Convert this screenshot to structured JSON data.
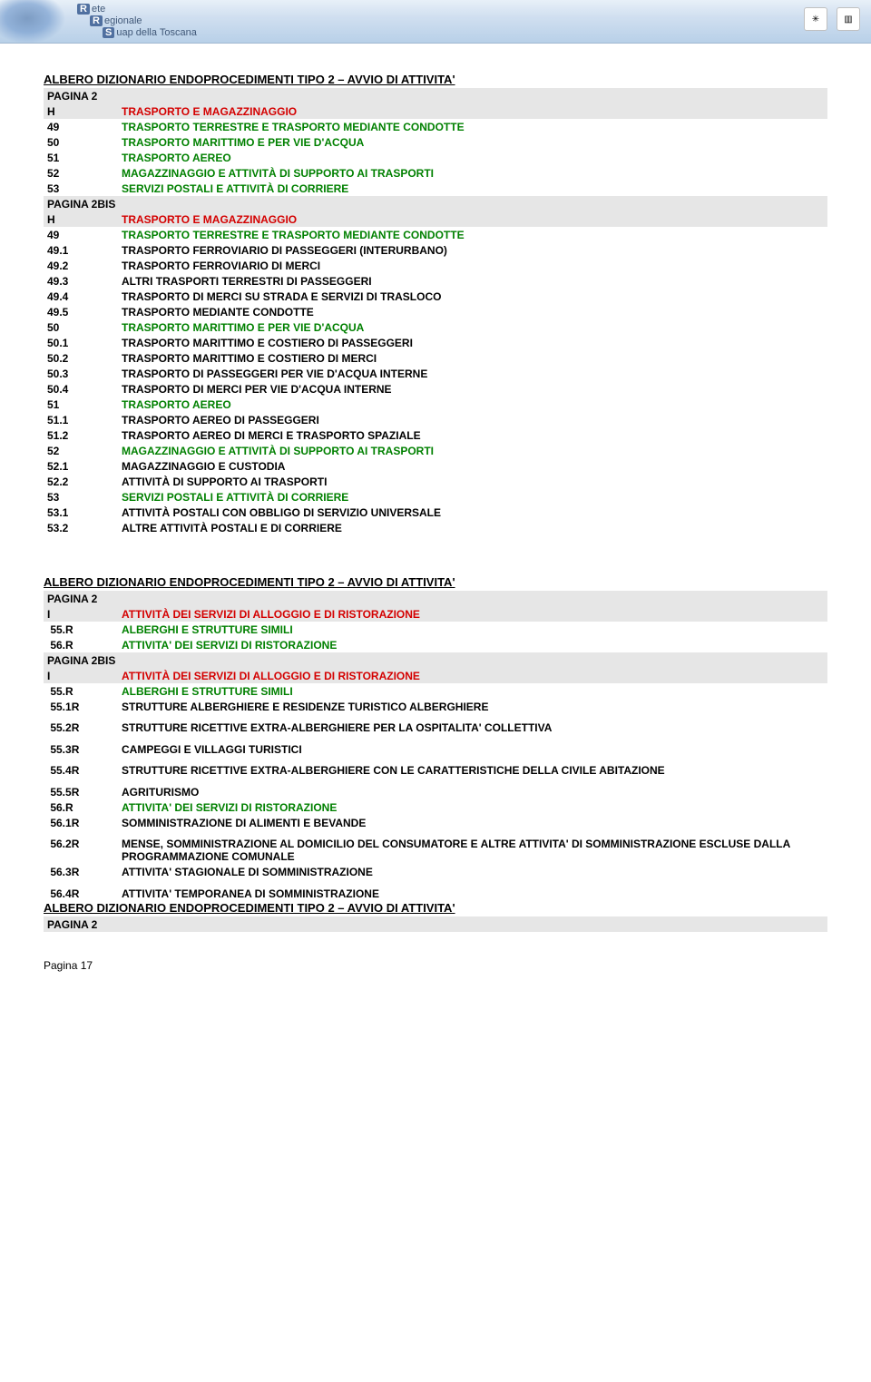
{
  "header": {
    "logo_line1_r": "R",
    "logo_line1": "ete",
    "logo_line2_r": "R",
    "logo_line2": "egionale",
    "logo_line3_r": "S",
    "logo_line3": "uap della Toscana",
    "badge1": "✳",
    "badge2": "▥"
  },
  "block1": {
    "title": "ALBERO DIZIONARIO ENDOPROCEDIMENTI TIPO 2 – AVVIO DI ATTIVITA'",
    "rows": [
      {
        "grey": true,
        "code": "PAGINA 2",
        "text": "",
        "color": "black"
      },
      {
        "grey": true,
        "code": "H",
        "text": "TRASPORTO E MAGAZZINAGGIO",
        "color": "red"
      },
      {
        "grey": false,
        "code": "49",
        "text": "TRASPORTO TERRESTRE E TRASPORTO MEDIANTE CONDOTTE",
        "color": "green"
      },
      {
        "grey": false,
        "code": "50",
        "text": "TRASPORTO MARITTIMO E PER VIE D'ACQUA",
        "color": "green"
      },
      {
        "grey": false,
        "code": "51",
        "text": "TRASPORTO AEREO",
        "color": "green"
      },
      {
        "grey": false,
        "code": "52",
        "text": "MAGAZZINAGGIO E ATTIVITÀ DI SUPPORTO AI TRASPORTI",
        "color": "green"
      },
      {
        "grey": false,
        "code": "53",
        "text": "SERVIZI POSTALI E ATTIVITÀ DI CORRIERE",
        "color": "green"
      },
      {
        "grey": true,
        "code": "PAGINA 2BIS",
        "text": "",
        "color": "black"
      },
      {
        "grey": true,
        "code": "H",
        "text": "TRASPORTO E MAGAZZINAGGIO",
        "color": "red"
      },
      {
        "grey": false,
        "code": "49",
        "text": "TRASPORTO TERRESTRE E TRASPORTO MEDIANTE CONDOTTE",
        "color": "green"
      },
      {
        "grey": false,
        "code": "49.1",
        "text": "TRASPORTO FERROVIARIO DI PASSEGGERI (INTERURBANO)",
        "color": "black"
      },
      {
        "grey": false,
        "code": "49.2",
        "text": "TRASPORTO FERROVIARIO DI MERCI",
        "color": "black"
      },
      {
        "grey": false,
        "code": "49.3",
        "text": "ALTRI TRASPORTI TERRESTRI DI PASSEGGERI",
        "color": "black"
      },
      {
        "grey": false,
        "code": "49.4",
        "text": "TRASPORTO DI MERCI SU STRADA E SERVIZI DI TRASLOCO",
        "color": "black"
      },
      {
        "grey": false,
        "code": "49.5",
        "text": "TRASPORTO MEDIANTE CONDOTTE",
        "color": "black"
      },
      {
        "grey": false,
        "code": "50",
        "text": "TRASPORTO MARITTIMO E PER VIE D'ACQUA",
        "color": "green"
      },
      {
        "grey": false,
        "code": "50.1",
        "text": "TRASPORTO MARITTIMO E COSTIERO DI PASSEGGERI",
        "color": "black"
      },
      {
        "grey": false,
        "code": "50.2",
        "text": "TRASPORTO MARITTIMO E COSTIERO DI MERCI",
        "color": "black"
      },
      {
        "grey": false,
        "code": "50.3",
        "text": "TRASPORTO DI PASSEGGERI PER VIE D'ACQUA INTERNE",
        "color": "black"
      },
      {
        "grey": false,
        "code": "50.4",
        "text": "TRASPORTO DI MERCI PER VIE D'ACQUA INTERNE",
        "color": "black"
      },
      {
        "grey": false,
        "code": "51",
        "text": "TRASPORTO AEREO",
        "color": "green"
      },
      {
        "grey": false,
        "code": "51.1",
        "text": "TRASPORTO AEREO DI PASSEGGERI",
        "color": "black"
      },
      {
        "grey": false,
        "code": "51.2",
        "text": "TRASPORTO AEREO DI MERCI E TRASPORTO SPAZIALE",
        "color": "black"
      },
      {
        "grey": false,
        "code": "52",
        "text": "MAGAZZINAGGIO E ATTIVITÀ DI SUPPORTO AI TRASPORTI",
        "color": "green"
      },
      {
        "grey": false,
        "code": "52.1",
        "text": "MAGAZZINAGGIO E CUSTODIA",
        "color": "black"
      },
      {
        "grey": false,
        "code": "52.2",
        "text": "ATTIVITÀ DI SUPPORTO AI TRASPORTI",
        "color": "black"
      },
      {
        "grey": false,
        "code": "53",
        "text": "SERVIZI POSTALI E ATTIVITÀ DI CORRIERE",
        "color": "green"
      },
      {
        "grey": false,
        "code": "53.1",
        "text": "ATTIVITÀ POSTALI CON OBBLIGO DI SERVIZIO UNIVERSALE",
        "color": "black"
      },
      {
        "grey": false,
        "code": "53.2",
        "text": "ALTRE ATTIVITÀ POSTALI E DI CORRIERE",
        "color": "black"
      }
    ]
  },
  "block2": {
    "title": "ALBERO DIZIONARIO ENDOPROCEDIMENTI TIPO 2 – AVVIO DI ATTIVITA'",
    "rows": [
      {
        "grey": true,
        "code": "PAGINA 2",
        "text": "",
        "color": "black"
      },
      {
        "grey": true,
        "code": "I",
        "text": "ATTIVITÀ DEI SERVIZI DI ALLOGGIO E DI RISTORAZIONE",
        "color": "red"
      },
      {
        "grey": false,
        "code": " 55.R",
        "text": "ALBERGHI E STRUTTURE SIMILI",
        "color": "green"
      },
      {
        "grey": false,
        "code": " 56.R",
        "text": "ATTIVITA' DEI SERVIZI DI RISTORAZIONE",
        "color": "green"
      },
      {
        "grey": true,
        "code": "PAGINA 2BIS",
        "text": "",
        "color": "black"
      },
      {
        "grey": true,
        "code": "I",
        "text": "ATTIVITÀ DEI SERVIZI DI ALLOGGIO E DI RISTORAZIONE",
        "color": "red"
      },
      {
        "grey": false,
        "code": " 55.R",
        "text": "ALBERGHI E STRUTTURE SIMILI",
        "color": "green"
      },
      {
        "grey": false,
        "code": " 55.1R",
        "text": "STRUTTURE ALBERGHIERE E RESIDENZE TURISTICO ALBERGHIERE",
        "color": "black",
        "pad": true
      },
      {
        "grey": false,
        "code": " 55.2R",
        "text": "STRUTTURE RICETTIVE EXTRA-ALBERGHIERE PER LA OSPITALITA' COLLETTIVA",
        "color": "black",
        "pad": true
      },
      {
        "grey": false,
        "code": " 55.3R",
        "text": "CAMPEGGI E VILLAGGI TURISTICI",
        "color": "black",
        "pad": true
      },
      {
        "grey": false,
        "code": " 55.4R",
        "text": "STRUTTURE RICETTIVE EXTRA-ALBERGHIERE CON LE CARATTERISTICHE DELLA CIVILE ABITAZIONE",
        "color": "black",
        "pad": true
      },
      {
        "grey": false,
        "code": " 55.5R",
        "text": "AGRITURISMO",
        "color": "black"
      },
      {
        "grey": false,
        "code": " 56.R",
        "text": "ATTIVITA' DEI SERVIZI DI RISTORAZIONE",
        "color": "green"
      },
      {
        "grey": false,
        "code": " 56.1R",
        "text": "SOMMINISTRAZIONE DI ALIMENTI E BEVANDE",
        "color": "black",
        "pad": true
      },
      {
        "grey": false,
        "code": " 56.2R",
        "text": "MENSE, SOMMINISTRAZIONE AL DOMICILIO DEL CONSUMATORE  E ALTRE ATTIVITA' DI SOMMINISTRAZIONE ESCLUSE DALLA PROGRAMMAZIONE COMUNALE",
        "color": "black"
      },
      {
        "grey": false,
        "code": " 56.3R",
        "text": "ATTIVITA' STAGIONALE DI SOMMINISTRAZIONE",
        "color": "black",
        "pad": true
      },
      {
        "grey": false,
        "code": " 56.4R",
        "text": "ATTIVITA' TEMPORANEA DI SOMMINISTRAZIONE",
        "color": "black"
      }
    ]
  },
  "block3": {
    "title": "ALBERO DIZIONARIO ENDOPROCEDIMENTI TIPO 2 – AVVIO DI ATTIVITA'",
    "rows": [
      {
        "grey": true,
        "code": "PAGINA 2",
        "text": "",
        "color": "black"
      }
    ]
  },
  "footer": "Pagina  17"
}
